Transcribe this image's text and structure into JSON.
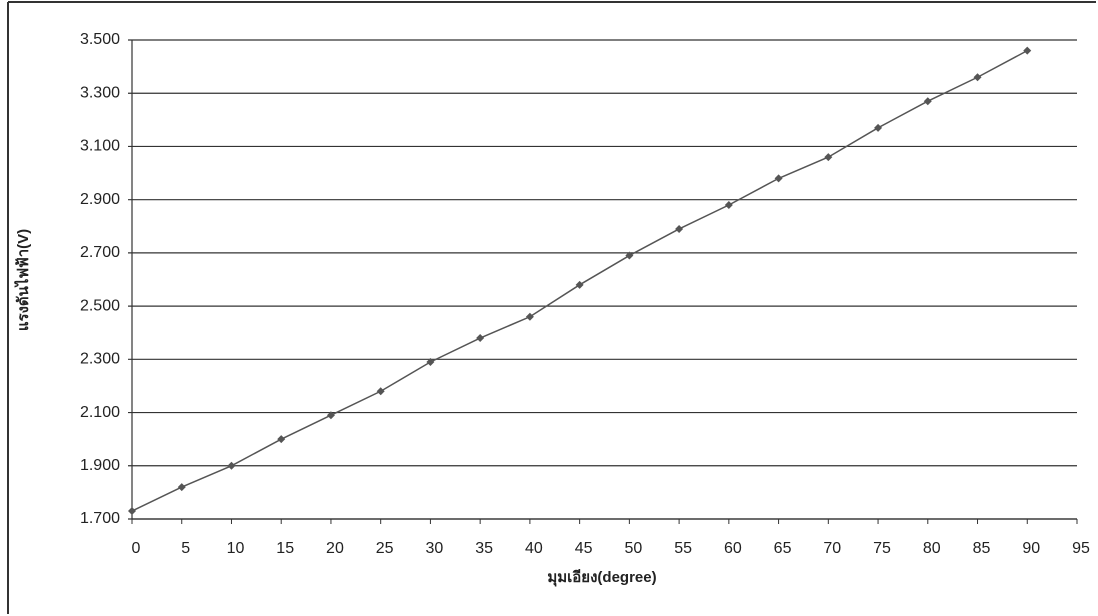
{
  "chart_data": {
    "type": "line",
    "x_label": "มุมเอียง(degree)",
    "y_label": "แรงดันไฟฟ้า(V)",
    "x": [
      0,
      5,
      10,
      15,
      20,
      25,
      30,
      35,
      40,
      45,
      50,
      55,
      60,
      65,
      70,
      75,
      80,
      85,
      90
    ],
    "series": [
      {
        "color": "#555555",
        "values": [
          1.73,
          1.82,
          1.9,
          2.0,
          2.09,
          2.18,
          2.29,
          2.38,
          2.46,
          2.58,
          2.69,
          2.79,
          2.88,
          2.98,
          3.06,
          3.17,
          3.27,
          3.36,
          3.46
        ]
      }
    ],
    "xlim": [
      0,
      95
    ],
    "xticks": [
      0,
      5,
      10,
      15,
      20,
      25,
      30,
      35,
      40,
      45,
      50,
      55,
      60,
      65,
      70,
      75,
      80,
      85,
      90,
      95
    ],
    "ylim": [
      1.7,
      3.5
    ],
    "yticks": [
      {
        "value": 1.7,
        "label": "1.700"
      },
      {
        "value": 1.9,
        "label": "1.900"
      },
      {
        "value": 2.1,
        "label": "2.100"
      },
      {
        "value": 2.3,
        "label": "2.300"
      },
      {
        "value": 2.5,
        "label": "2.500"
      },
      {
        "value": 2.7,
        "label": "2.700"
      },
      {
        "value": 2.9,
        "label": "2.900"
      },
      {
        "value": 3.1,
        "label": "3.100"
      },
      {
        "value": 3.3,
        "label": "3.300"
      },
      {
        "value": 3.5,
        "label": "3.500"
      }
    ],
    "grid": true
  }
}
